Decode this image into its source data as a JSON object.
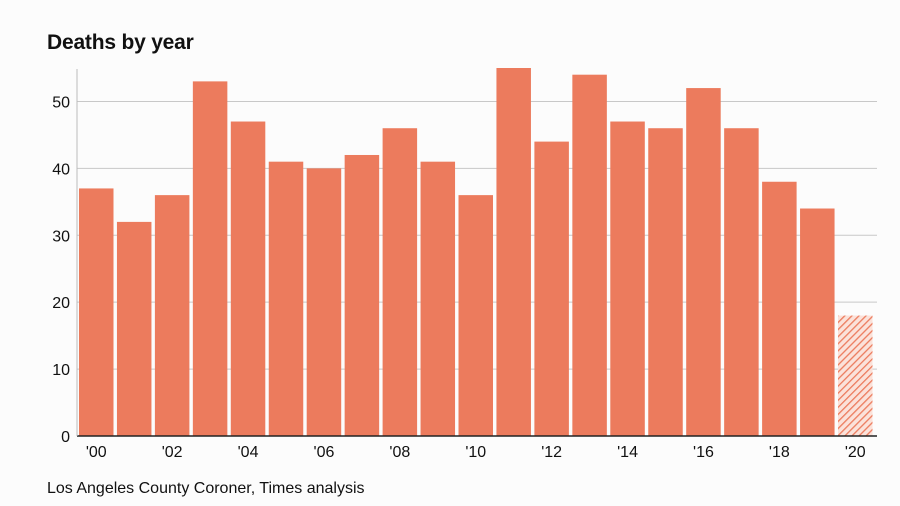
{
  "chart_data": {
    "type": "bar",
    "title": "Deaths by year",
    "xlabel": "",
    "ylabel": "",
    "categories": [
      "2000",
      "2001",
      "2002",
      "2003",
      "2004",
      "2005",
      "2006",
      "2007",
      "2008",
      "2009",
      "2010",
      "2011",
      "2012",
      "2013",
      "2014",
      "2015",
      "2016",
      "2017",
      "2018",
      "2019",
      "2020"
    ],
    "values": [
      37,
      32,
      36,
      53,
      47,
      41,
      40,
      42,
      46,
      41,
      36,
      55,
      44,
      54,
      47,
      46,
      52,
      46,
      38,
      34,
      18
    ],
    "partial_categories": [
      "2020"
    ],
    "x_tick_labels": [
      "'00",
      "'02",
      "'04",
      "'06",
      "'08",
      "'10",
      "'12",
      "'14",
      "'16",
      "'18",
      "'20"
    ],
    "x_tick_categories": [
      "2000",
      "2002",
      "2004",
      "2006",
      "2008",
      "2010",
      "2012",
      "2014",
      "2016",
      "2018",
      "2020"
    ],
    "y_ticks": [
      0,
      10,
      20,
      30,
      40,
      50
    ],
    "ylim": [
      0,
      55
    ],
    "grid": true,
    "bar_color": "#ec7b5d",
    "source": "Los Angeles County Coroner, Times analysis"
  }
}
